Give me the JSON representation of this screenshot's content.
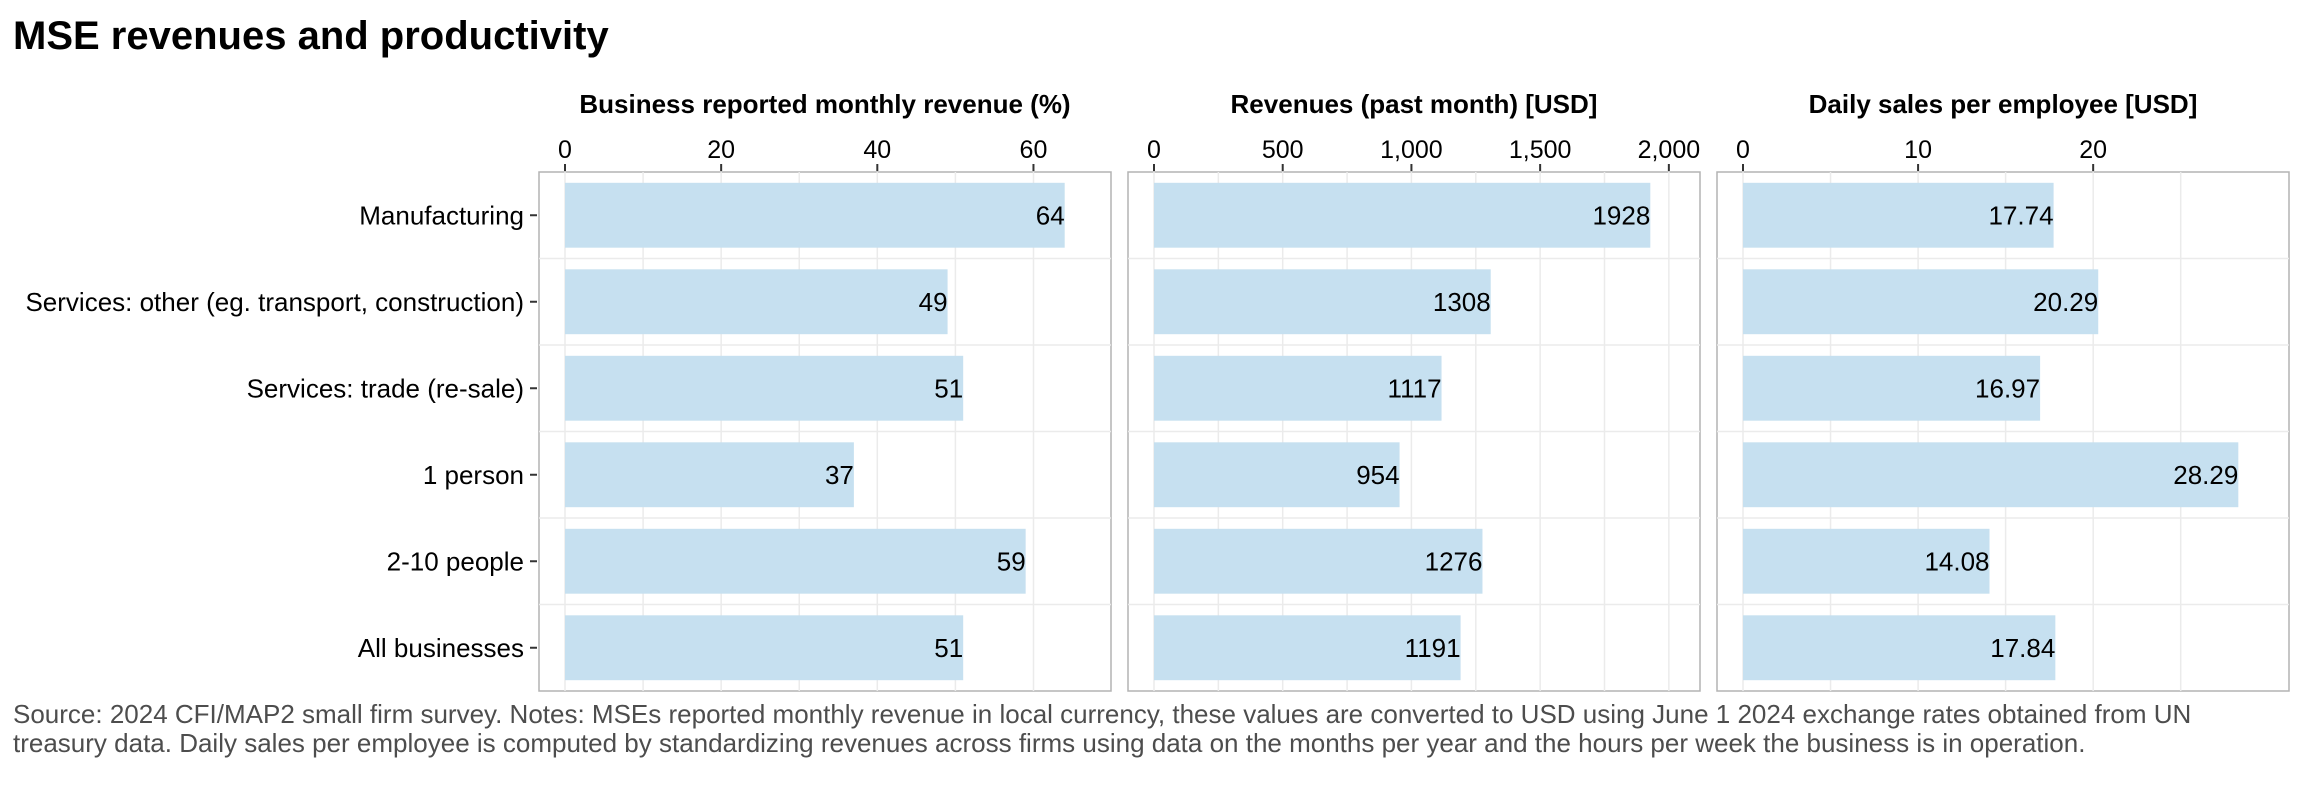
{
  "title": "MSE revenues and productivity",
  "caption": "Source: 2024 CFI/MAP2 small firm survey. Notes: MSEs reported monthly revenue in local currency, these values are converted to USD using June 1 2024 exchange rates obtained from UN treasury data. Daily sales per employee is computed by standardizing revenues across firms using data on the months per year and the hours per week the business is in operation.",
  "colors": {
    "bar": "#c6e0f0",
    "panel_border": "#b3b3b3",
    "grid": "#ebebeb"
  },
  "chart_data": {
    "type": "bar",
    "orientation": "horizontal",
    "categories": [
      "Manufacturing",
      "Services: other (eg. transport, construction)",
      "Services: trade (re-sale)",
      "1 person",
      "2-10 people",
      "All businesses"
    ],
    "panels": [
      {
        "title": "Business reported monthly revenue (%)",
        "values": [
          64,
          49,
          51,
          37,
          59,
          51
        ],
        "labels": [
          "64",
          "49",
          "51",
          "37",
          "59",
          "51"
        ],
        "xlim": [
          0,
          66.6
        ],
        "ticks": [
          0,
          20,
          40,
          60
        ],
        "tick_labels": [
          "0",
          "20",
          "40",
          "60"
        ]
      },
      {
        "title": "Revenues (past month) [USD]",
        "values": [
          1928,
          1308,
          1117,
          954,
          1276,
          1191
        ],
        "labels": [
          "1928",
          "1308",
          "1117",
          "954",
          "1276",
          "1191"
        ],
        "xlim": [
          0,
          2020
        ],
        "ticks": [
          0,
          500,
          1000,
          1500,
          2000
        ],
        "tick_labels": [
          "0",
          "500",
          "1,000",
          "1,500",
          "2,000"
        ]
      },
      {
        "title": "Daily sales per employee [USD]",
        "values": [
          17.74,
          20.29,
          16.97,
          28.29,
          14.08,
          17.84
        ],
        "labels": [
          "17.74",
          "20.29",
          "16.97",
          "28.29",
          "14.08",
          "17.84"
        ],
        "xlim": [
          0,
          29.7
        ],
        "ticks": [
          0,
          10,
          20
        ],
        "tick_labels": [
          "0",
          "10",
          "20"
        ]
      }
    ]
  }
}
